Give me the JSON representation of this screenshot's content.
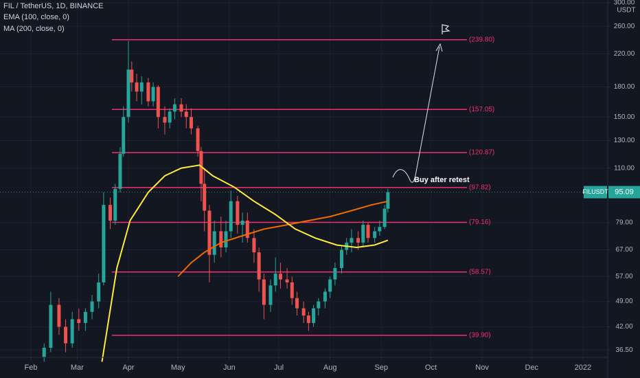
{
  "chart_data": {
    "type": "candlestick",
    "title": "FIL / TetherUS, 1D, BINANCE",
    "unit": "USDT",
    "log_scale": true,
    "grid": true,
    "up_color": "#26a69a",
    "down_color": "#ef5350",
    "x": [
      39,
      43,
      48,
      52,
      56,
      60,
      64,
      68,
      72,
      75,
      79,
      82,
      85,
      87,
      90,
      92,
      95,
      98,
      102,
      105,
      108,
      112,
      115,
      118,
      122,
      125,
      128,
      132,
      134,
      136,
      139,
      142,
      146,
      149,
      152,
      156,
      159,
      162,
      166,
      169,
      172,
      176,
      179,
      182,
      186,
      189,
      192,
      196,
      199,
      202,
      205,
      209,
      212,
      215,
      219,
      222,
      225,
      229,
      232,
      235,
      239,
      242,
      245,
      247
    ],
    "open": [
      35,
      37,
      48,
      42,
      38,
      44,
      43,
      46,
      49,
      55,
      88,
      80,
      97,
      120,
      150,
      200,
      185,
      175,
      185,
      165,
      180,
      150,
      145,
      155,
      162,
      155,
      150,
      140,
      122,
      100,
      85,
      65,
      75,
      68,
      75,
      90,
      78,
      80,
      72,
      66,
      56,
      48,
      54,
      58,
      56,
      55,
      50,
      47,
      45,
      43,
      47,
      49,
      52,
      56,
      60,
      67,
      70,
      72,
      70,
      78,
      72,
      75,
      77,
      86
    ],
    "high": [
      38,
      52,
      50,
      44,
      46,
      47,
      47,
      51,
      58,
      95,
      92,
      100,
      125,
      160,
      238,
      210,
      195,
      192,
      190,
      185,
      182,
      160,
      158,
      168,
      168,
      162,
      158,
      142,
      125,
      110,
      88,
      80,
      82,
      80,
      96,
      93,
      84,
      84,
      76,
      68,
      58,
      56,
      64,
      62,
      60,
      57,
      52,
      49,
      46,
      48,
      50,
      53,
      57,
      62,
      69,
      72,
      76,
      75,
      80,
      79,
      77,
      80,
      88,
      97
    ],
    "low": [
      34,
      36,
      40,
      36,
      37,
      41,
      41,
      44,
      47,
      54,
      76,
      78,
      95,
      118,
      145,
      175,
      165,
      162,
      160,
      160,
      140,
      135,
      140,
      148,
      150,
      140,
      135,
      118,
      90,
      75,
      55,
      62,
      64,
      66,
      72,
      74,
      70,
      70,
      62,
      52,
      44,
      46,
      52,
      53,
      53,
      48,
      45,
      43,
      41,
      42,
      45,
      47,
      50,
      54,
      58,
      65,
      66,
      67,
      68,
      70,
      70,
      73,
      76,
      84
    ],
    "close": [
      37,
      48,
      42,
      38,
      44,
      43,
      46,
      49,
      55,
      88,
      80,
      97,
      120,
      150,
      200,
      185,
      175,
      185,
      165,
      180,
      150,
      145,
      155,
      162,
      155,
      150,
      140,
      122,
      100,
      85,
      65,
      75,
      68,
      75,
      90,
      78,
      80,
      72,
      66,
      56,
      48,
      54,
      58,
      56,
      55,
      50,
      47,
      45,
      43,
      47,
      49,
      52,
      56,
      60,
      67,
      70,
      72,
      70,
      78,
      72,
      75,
      77,
      86,
      95.09
    ],
    "lines": [
      {
        "name": "EMA (100, close, 0)",
        "color": "#ef6c00",
        "x": [
          120,
          128,
          136,
          146,
          159,
          172,
          186,
          199,
          212,
          225,
          237,
          247
        ],
        "values": [
          57,
          62,
          66,
          70,
          73,
          76,
          78,
          80,
          82,
          85,
          88,
          90
        ]
      },
      {
        "name": "MA (200, close, 0)",
        "color": "#ffeb3b",
        "x": [
          74,
          83,
          91,
          102,
          112,
          122,
          133,
          141,
          154,
          166,
          179,
          191,
          203,
          216,
          228,
          239,
          247
        ],
        "values": [
          34,
          60,
          80,
          95,
          105,
          110,
          112,
          105,
          98,
          90,
          83,
          76,
          72,
          69,
          68,
          69,
          71
        ]
      }
    ],
    "levels": {
      "color": "#f0306e",
      "values": [
        {
          "value": 239.8,
          "label": "(239.80)"
        },
        {
          "value": 157.05,
          "label": "(157.05)"
        },
        {
          "value": 120.87,
          "label": "(120.87)"
        },
        {
          "value": 97.82,
          "label": "(97.82)"
        },
        {
          "value": 79.16,
          "label": "(79.16)"
        },
        {
          "value": 58.57,
          "label": "(58.57)"
        },
        {
          "value": 39.9,
          "label": "(39.90)"
        }
      ]
    },
    "last_price": {
      "symbol": "FILUSDT",
      "value": 95.09,
      "label": "95.09",
      "color": "#26a69a"
    },
    "annotation": "Buy after retest",
    "xlim": [
      12.3,
      380
    ],
    "ylim": [
      34.9,
      305
    ],
    "xticks": [
      {
        "value": 31,
        "label": "Feb"
      },
      {
        "value": 59,
        "label": "Mar"
      },
      {
        "value": 90,
        "label": "Apr"
      },
      {
        "value": 120,
        "label": "May"
      },
      {
        "value": 151,
        "label": "Jun"
      },
      {
        "value": 181,
        "label": "Jul"
      },
      {
        "value": 212,
        "label": "Aug"
      },
      {
        "value": 243,
        "label": "Sep"
      },
      {
        "value": 273,
        "label": "Oct"
      },
      {
        "value": 304,
        "label": "Nov"
      },
      {
        "value": 334,
        "label": "Dec"
      },
      {
        "value": 365,
        "label": "2022"
      }
    ],
    "yticks": [
      {
        "value": 36.5,
        "label": "36.50"
      },
      {
        "value": 42,
        "label": "42.00"
      },
      {
        "value": 49,
        "label": "49.00"
      },
      {
        "value": 57,
        "label": "57.00"
      },
      {
        "value": 67,
        "label": "67.00"
      },
      {
        "value": 79,
        "label": "79.00"
      },
      {
        "value": 110,
        "label": "110.00"
      },
      {
        "value": 130,
        "label": "130.00"
      },
      {
        "value": 150,
        "label": "150.00"
      },
      {
        "value": 180,
        "label": "180.00"
      },
      {
        "value": 220,
        "label": "220.00"
      },
      {
        "value": 260,
        "label": "260.00"
      },
      {
        "value": 300,
        "label": "300.00"
      }
    ]
  }
}
